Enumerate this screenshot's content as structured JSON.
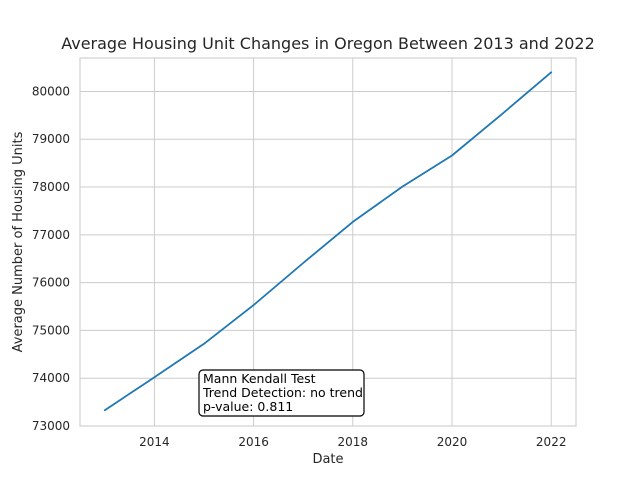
{
  "chart_data": {
    "type": "line",
    "title": "Average Housing Unit Changes in Oregon Between 2013 and 2022",
    "xlabel": "Date",
    "ylabel": "Average Number of Housing Units",
    "xlim": [
      2012.5,
      2022.5
    ],
    "ylim": [
      73000,
      80700
    ],
    "x_ticks": [
      2014,
      2016,
      2018,
      2020,
      2022
    ],
    "y_ticks": [
      73000,
      74000,
      75000,
      76000,
      77000,
      78000,
      79000,
      80000
    ],
    "grid": true,
    "series": [
      {
        "color": "#1f77b4",
        "x": [
          2013,
          2014,
          2015,
          2016,
          2017,
          2018,
          2019,
          2020,
          2021,
          2022
        ],
        "values": [
          73330,
          74020,
          74720,
          75530,
          76410,
          77270,
          78010,
          78660,
          79520,
          80400
        ]
      }
    ],
    "annotation": {
      "lines": [
        "Mann Kendall Test",
        "Trend Detection: no trend",
        "p-value: 0.811"
      ]
    }
  }
}
